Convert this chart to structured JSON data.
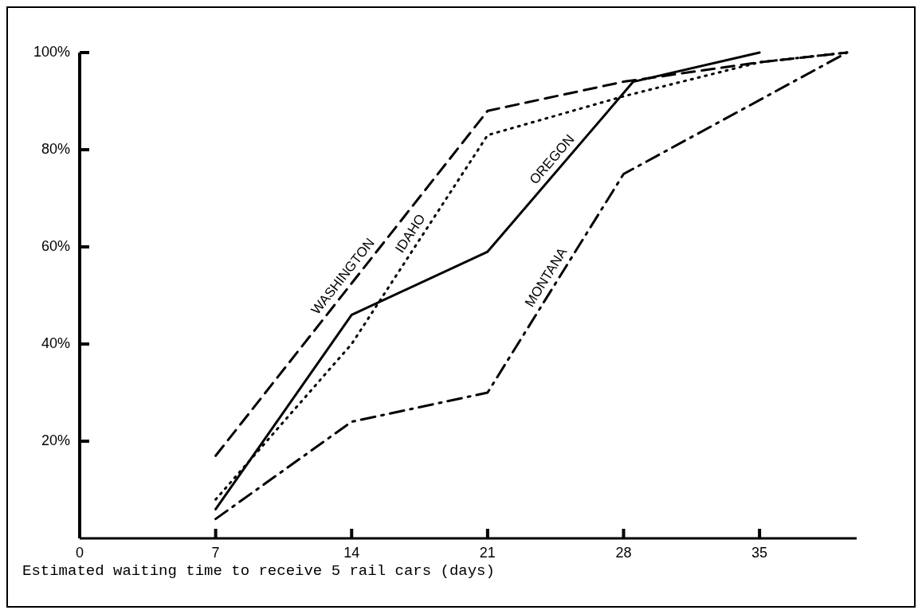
{
  "chart_data": {
    "type": "line",
    "xlabel": "Estimated waiting time to receive 5 rail cars (days)",
    "xlim": [
      0,
      40
    ],
    "xticks": [
      0,
      7,
      14,
      21,
      28,
      35
    ],
    "ylim": [
      0,
      100
    ],
    "yticks": [
      {
        "value": 20,
        "label": "20%"
      },
      {
        "value": 40,
        "label": "40%"
      },
      {
        "value": 60,
        "label": "60%"
      },
      {
        "value": 80,
        "label": "80%"
      },
      {
        "value": 100,
        "label": "100%"
      }
    ],
    "grid": false,
    "series": [
      {
        "name": "WASHINGTON",
        "color": "#000000",
        "line_style": "dashed",
        "x": [
          7,
          21,
          28,
          35,
          39.5
        ],
        "values": [
          17,
          88,
          94,
          98,
          100
        ]
      },
      {
        "name": "IDAHO",
        "color": "#000000",
        "line_style": "dotted",
        "x": [
          7,
          14,
          21,
          28,
          35,
          39.5
        ],
        "values": [
          8,
          40,
          83,
          91,
          98,
          100
        ]
      },
      {
        "name": "OREGON",
        "color": "#000000",
        "line_style": "solid",
        "x": [
          7,
          14,
          21,
          28.5,
          35
        ],
        "values": [
          6,
          46,
          59,
          94,
          100
        ]
      },
      {
        "name": "MONTANA",
        "color": "#000000",
        "line_style": "dashdot",
        "x": [
          7,
          14,
          21,
          28,
          39.5
        ],
        "values": [
          4,
          24,
          30,
          75,
          100
        ]
      }
    ]
  }
}
